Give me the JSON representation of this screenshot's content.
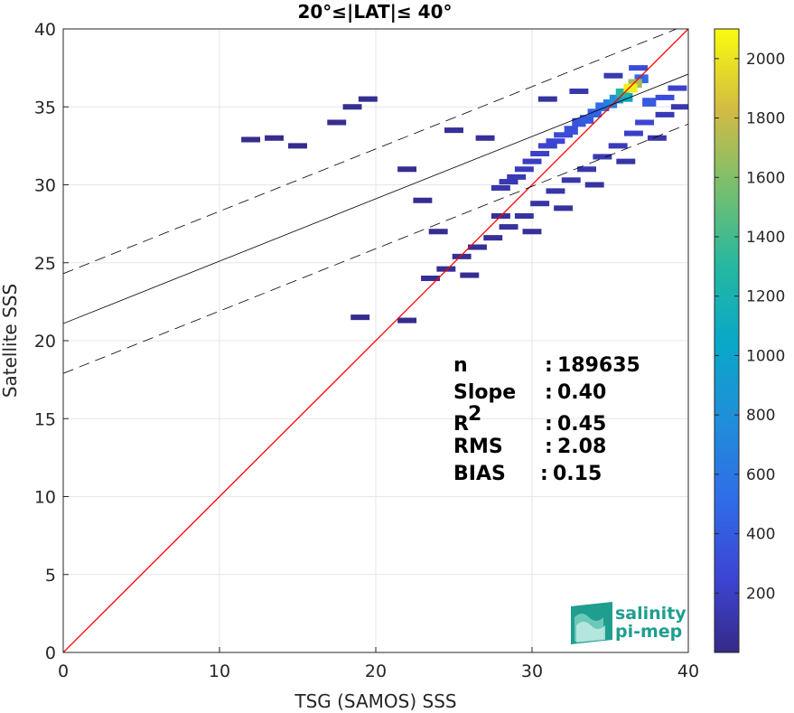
{
  "chart_data": {
    "type": "heatmap",
    "title": "20°≤|LAT|≤ 40°",
    "xlabel": "TSG (SAMOS) SSS",
    "ylabel": "Satellite SSS",
    "xlim": [
      0,
      40
    ],
    "ylim": [
      0,
      40
    ],
    "xticks": [
      "0",
      "10",
      "20",
      "30",
      "40"
    ],
    "yticks": [
      "0",
      "5",
      "10",
      "15",
      "20",
      "25",
      "30",
      "35",
      "40"
    ],
    "grid": true,
    "colorbar": {
      "range": [
        0,
        2100
      ],
      "colormap": "parula",
      "ticks": [
        "200",
        "400",
        "600",
        "800",
        "1000",
        "1200",
        "1400",
        "1600",
        "1800",
        "2000"
      ]
    },
    "fit_line": {
      "slope": 0.4,
      "intercept": 21.1,
      "band_offset": 3.2
    },
    "identity_line": {
      "color": "#ff0000"
    },
    "stats": [
      {
        "label": "n",
        "sep": ":",
        "value": "189635"
      },
      {
        "label": "Slope",
        "sep": ":",
        "value": "0.40"
      },
      {
        "label": "R",
        "sup": "2",
        "sep": ":",
        "value": "0.45"
      },
      {
        "label": "RMS",
        "sep": ":",
        "value": "2.08"
      },
      {
        "label": "BIAS",
        "sep": ":",
        "value": "0.15"
      }
    ],
    "density_points": [
      [
        36.3,
        36.2,
        2050
      ],
      [
        36.6,
        36.5,
        1700
      ],
      [
        35.8,
        35.9,
        1300
      ],
      [
        36.0,
        35.6,
        1000
      ],
      [
        35.4,
        35.5,
        800
      ],
      [
        35.0,
        35.2,
        650
      ],
      [
        34.5,
        35.0,
        520
      ],
      [
        34.0,
        34.6,
        450
      ],
      [
        33.5,
        34.2,
        400
      ],
      [
        33.0,
        34.0,
        360
      ],
      [
        32.5,
        33.5,
        320
      ],
      [
        32.0,
        33.2,
        280
      ],
      [
        31.5,
        32.8,
        250
      ],
      [
        31.0,
        32.5,
        230
      ],
      [
        30.5,
        32.0,
        210
      ],
      [
        30.0,
        31.5,
        190
      ],
      [
        29.5,
        31.0,
        170
      ],
      [
        29.0,
        30.5,
        150
      ],
      [
        28.5,
        30.2,
        130
      ],
      [
        28.0,
        29.8,
        110
      ],
      [
        37.5,
        35.3,
        400
      ],
      [
        38.5,
        35.6,
        300
      ],
      [
        39.3,
        36.2,
        220
      ],
      [
        37.2,
        34.0,
        250
      ],
      [
        36.5,
        33.3,
        200
      ],
      [
        35.5,
        32.5,
        160
      ],
      [
        34.5,
        31.8,
        140
      ],
      [
        33.5,
        31.0,
        120
      ],
      [
        32.5,
        30.3,
        110
      ],
      [
        31.5,
        29.6,
        100
      ],
      [
        30.5,
        28.8,
        90
      ],
      [
        29.5,
        28.0,
        80
      ],
      [
        28.5,
        27.3,
        70
      ],
      [
        27.5,
        26.6,
        60
      ],
      [
        26.5,
        26.0,
        50
      ],
      [
        25.5,
        25.4,
        45
      ],
      [
        24.5,
        24.6,
        40
      ],
      [
        23.5,
        24.0,
        35
      ],
      [
        26.0,
        24.2,
        30
      ],
      [
        24.0,
        27.0,
        30
      ],
      [
        23.0,
        29.0,
        30
      ],
      [
        22.0,
        31.0,
        25
      ],
      [
        19.5,
        35.5,
        40
      ],
      [
        18.5,
        35.0,
        35
      ],
      [
        17.5,
        34.0,
        30
      ],
      [
        12.0,
        32.9,
        20
      ],
      [
        13.5,
        33.0,
        20
      ],
      [
        15.0,
        32.5,
        20
      ],
      [
        19.0,
        21.5,
        20
      ],
      [
        22.0,
        21.3,
        20
      ],
      [
        38.5,
        34.5,
        150
      ],
      [
        39.5,
        35.0,
        120
      ],
      [
        36.8,
        37.5,
        300
      ],
      [
        37.0,
        36.8,
        500
      ],
      [
        35.2,
        37.0,
        150
      ],
      [
        33.0,
        36.0,
        120
      ],
      [
        31.0,
        35.5,
        80
      ],
      [
        27.0,
        33.0,
        60
      ],
      [
        25.0,
        33.5,
        50
      ],
      [
        28.0,
        28.0,
        60
      ],
      [
        30.0,
        27.0,
        60
      ],
      [
        32.0,
        28.5,
        70
      ],
      [
        34.0,
        30.0,
        80
      ],
      [
        36.0,
        31.5,
        90
      ],
      [
        38.0,
        33.0,
        110
      ]
    ]
  },
  "logo": {
    "line1": "salinity",
    "line2": "pi-mep"
  }
}
